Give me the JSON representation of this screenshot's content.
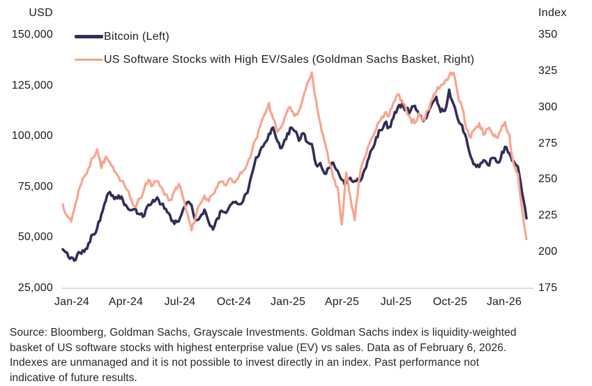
{
  "legend": {
    "items": [
      {
        "label": "Bitcoin (Left)",
        "color": "#322D56"
      },
      {
        "label": "US Software Stocks with High EV/Sales (Goldman Sachs Basket, Right)",
        "color": "#F8A48E"
      }
    ]
  },
  "chart_data": {
    "type": "line",
    "title": "",
    "legend_position": "top-left",
    "grid": "none",
    "left_axis": {
      "title": "USD",
      "min": 25000,
      "max": 150000,
      "tick_labels": [
        "150,000",
        "125,000",
        "100,000",
        "75,000",
        "50,000",
        "25,000"
      ]
    },
    "right_axis": {
      "title": "Index",
      "min": 175,
      "max": 350,
      "tick_labels": [
        "350",
        "325",
        "300",
        "275",
        "250",
        "225",
        "200",
        "175"
      ]
    },
    "x_axis": {
      "tick_labels": [
        "Jan-24",
        "Apr-24",
        "Jul-24",
        "Oct-24",
        "Jan-25",
        "Apr-25",
        "Jul-25",
        "Oct-25",
        "Jan-26"
      ]
    },
    "series": [
      {
        "name": "Bitcoin (Left)",
        "axis": "left",
        "unit": "USD",
        "color": "#322D56",
        "values": [
          44200,
          42600,
          40200,
          39000,
          42600,
          43000,
          47200,
          51500,
          54500,
          61500,
          68000,
          72500,
          69000,
          70800,
          68500,
          65000,
          63500,
          64000,
          61500,
          60800,
          66300,
          68500,
          69800,
          66500,
          64200,
          61000,
          56800,
          58000,
          63800,
          67500,
          66000,
          58500,
          60200,
          63800,
          57500,
          54000,
          59500,
          63300,
          62200,
          66000,
          67300,
          66500,
          68000,
          72000,
          81000,
          89500,
          93000,
          96500,
          101200,
          104300,
          97500,
          94200,
          98500,
          104200,
          102500,
          97800,
          101500,
          97000,
          96200,
          86000,
          86800,
          81500,
          84300,
          87000,
          83000,
          78500,
          77000,
          79500,
          78000,
          77500,
          82000,
          88000,
          93500,
          99500,
          103000,
          106500,
          104500,
          109000,
          114000,
          116000,
          113000,
          112500,
          115000,
          110500,
          107500,
          111000,
          116000,
          119500,
          112000,
          112500,
          123000,
          116000,
          108500,
          105500,
          99000,
          90000,
          86200,
          84800,
          88200,
          85800,
          89300,
          87500,
          89000,
          94800,
          91500,
          87800,
          85000,
          72000,
          59500
        ]
      },
      {
        "name": "US Software Stocks with High EV/Sales (Goldman Sachs Basket, Right)",
        "axis": "right",
        "unit": "index",
        "color": "#F8A48E",
        "values": [
          233,
          225,
          221,
          234,
          245,
          252,
          258,
          265,
          271,
          258,
          266,
          262,
          256,
          252,
          249,
          243,
          236,
          231,
          237,
          244,
          250,
          246,
          249,
          245,
          240,
          236,
          242,
          247,
          238,
          227,
          215,
          225,
          233,
          239,
          235,
          240,
          245,
          249,
          246,
          251,
          248,
          252,
          256,
          261,
          269,
          278,
          287,
          295,
          303,
          292,
          283,
          287,
          295,
          300,
          294,
          298,
          307,
          317,
          324,
          305,
          289,
          276,
          262,
          251,
          245,
          219,
          255,
          238,
          222,
          250,
          263,
          272,
          279,
          285,
          291,
          296,
          294,
          303,
          309,
          305,
          298,
          292,
          289,
          296,
          291,
          298,
          305,
          311,
          315,
          318,
          322,
          324,
          309,
          300,
          285,
          279,
          285,
          289,
          281,
          285,
          282,
          279,
          284,
          290,
          281,
          261,
          254,
          230,
          209
        ]
      }
    ]
  },
  "source": {
    "lines": [
      "Source: Bloomberg, Goldman Sachs, Grayscale Investments. Goldman Sachs index is liquidity-weighted",
      "basket of US software stocks with highest enterprise value (EV) vs sales. Data as of February 6, 2026.",
      "Indexes are unmanaged and it is not possible to invest directly in an index. Past performance not",
      "indicative of future results."
    ]
  }
}
